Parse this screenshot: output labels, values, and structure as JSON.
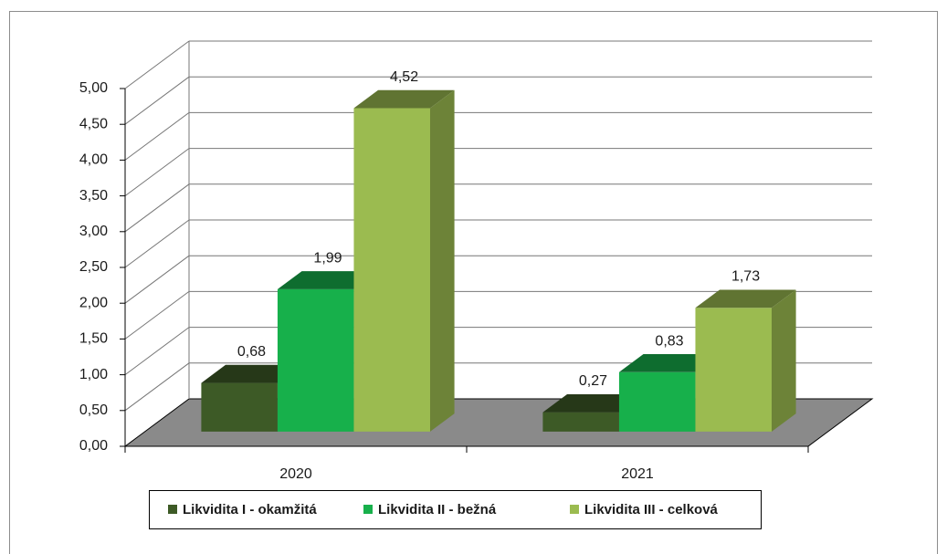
{
  "chart_data": {
    "type": "bar3d",
    "categories": [
      "2020",
      "2021"
    ],
    "series": [
      {
        "name": "Likvidita I - okamžitá",
        "color": "#3d5a26",
        "values": [
          0.68,
          0.27
        ],
        "value_labels": [
          "0,68",
          "0,27"
        ]
      },
      {
        "name": "Likvidita II - bežná",
        "color": "#17b04b",
        "values": [
          1.99,
          0.83
        ],
        "value_labels": [
          "1,99",
          "0,83"
        ]
      },
      {
        "name": "Likvidita III - celková",
        "color": "#9bbb50",
        "values": [
          4.52,
          1.73
        ],
        "value_labels": [
          "4,52",
          "1,73"
        ]
      }
    ],
    "ylim": [
      0,
      5
    ],
    "yticks": [
      {
        "value": 0,
        "label": "0,00"
      },
      {
        "value": 0.5,
        "label": "0,50"
      },
      {
        "value": 1,
        "label": "1,00"
      },
      {
        "value": 1.5,
        "label": "1,50"
      },
      {
        "value": 2,
        "label": "2,00"
      },
      {
        "value": 2.5,
        "label": "2,50"
      },
      {
        "value": 3,
        "label": "3,00"
      },
      {
        "value": 3.5,
        "label": "3,50"
      },
      {
        "value": 4,
        "label": "4,00"
      },
      {
        "value": 4.5,
        "label": "4,50"
      },
      {
        "value": 5,
        "label": "5,00"
      }
    ],
    "grid": true,
    "legend": "bottom"
  }
}
